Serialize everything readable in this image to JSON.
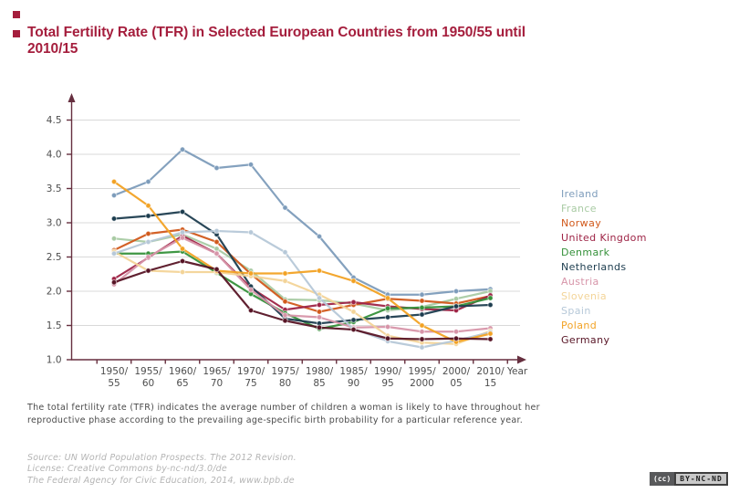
{
  "header": {
    "bullet_color": "#a51e3d",
    "title_color": "#a51e3d",
    "title": "Total Fertility Rate (TFR) in Selected European Countries from 1950/55 until 2010/15",
    "title_lines": [
      "Total Fertility Rate (TFR) in Selected European Countries from 1950/55 until",
      "2010/15"
    ]
  },
  "chart_data": {
    "type": "line",
    "title": "Total Fertility Rate (TFR) in Selected European Countries from 1950/55 until 2010/15",
    "xlabel": "Year",
    "ylabel": "",
    "ylim": [
      1.0,
      4.75
    ],
    "yticks": [
      1.0,
      1.5,
      2.0,
      2.5,
      3.0,
      3.5,
      4.0,
      4.5
    ],
    "ytick_labels": [
      "1.0",
      "1.5",
      "2.0",
      "2.5",
      "3.0",
      "3.5",
      "4.0",
      "4.5"
    ],
    "grid": true,
    "legend_position": "right",
    "axis_color": "#662f3f",
    "grid_color": "#d9d9d9",
    "tick_text_color": "#4d4d4d",
    "categories": [
      "1950/55",
      "1955/60",
      "1960/65",
      "1965/70",
      "1970/75",
      "1975/80",
      "1980/85",
      "1985/90",
      "1990/95",
      "1995/2000",
      "2000/05",
      "2010/15"
    ],
    "series": [
      {
        "name": "Ireland",
        "color": "#7d9cbb",
        "values": [
          3.4,
          3.6,
          4.07,
          3.8,
          3.85,
          3.22,
          2.8,
          2.2,
          1.95,
          1.95,
          2.0,
          2.03
        ]
      },
      {
        "name": "France",
        "color": "#a9cba4",
        "values": [
          2.77,
          2.72,
          2.83,
          2.62,
          2.3,
          1.88,
          1.87,
          1.82,
          1.72,
          1.77,
          1.89,
          2.0
        ]
      },
      {
        "name": "Norway",
        "color": "#d1591b",
        "values": [
          2.6,
          2.84,
          2.9,
          2.72,
          2.25,
          1.85,
          1.7,
          1.8,
          1.89,
          1.86,
          1.82,
          1.93
        ]
      },
      {
        "name": "United Kingdom",
        "color": "#9e2446",
        "values": [
          2.18,
          2.49,
          2.81,
          2.55,
          2.05,
          1.73,
          1.8,
          1.84,
          1.78,
          1.74,
          1.72,
          1.94
        ]
      },
      {
        "name": "Denmark",
        "color": "#35913a",
        "values": [
          2.55,
          2.55,
          2.58,
          2.27,
          1.96,
          1.68,
          1.45,
          1.55,
          1.75,
          1.76,
          1.78,
          1.9
        ]
      },
      {
        "name": "Netherlands",
        "color": "#1d3d4f",
        "values": [
          3.06,
          3.1,
          3.16,
          2.83,
          2.07,
          1.6,
          1.53,
          1.58,
          1.62,
          1.66,
          1.78,
          1.8
        ]
      },
      {
        "name": "Austria",
        "color": "#d795a9",
        "values": [
          2.1,
          2.5,
          2.78,
          2.55,
          2.02,
          1.65,
          1.62,
          1.47,
          1.48,
          1.41,
          1.41,
          1.46
        ]
      },
      {
        "name": "Slovenia",
        "color": "#f3d498",
        "values": [
          2.58,
          2.3,
          2.28,
          2.28,
          2.22,
          2.15,
          1.95,
          1.7,
          1.35,
          1.25,
          1.23,
          1.42
        ]
      },
      {
        "name": "Spain",
        "color": "#b6c8d8",
        "values": [
          2.55,
          2.72,
          2.86,
          2.88,
          2.86,
          2.57,
          1.9,
          1.45,
          1.27,
          1.18,
          1.28,
          1.4
        ]
      },
      {
        "name": "Poland",
        "color": "#f2a224",
        "values": [
          3.6,
          3.25,
          2.62,
          2.3,
          2.26,
          2.26,
          2.3,
          2.15,
          1.9,
          1.5,
          1.26,
          1.38
        ]
      },
      {
        "name": "Germany",
        "color": "#571425",
        "values": [
          2.13,
          2.3,
          2.44,
          2.32,
          1.72,
          1.57,
          1.47,
          1.44,
          1.31,
          1.3,
          1.31,
          1.3
        ]
      }
    ]
  },
  "note": {
    "text": "The total fertility rate (TFR) indicates the average number of children a woman is likely to have throughout her reproductive phase according to the prevailing age-specific birth probability for a particular reference year."
  },
  "footer": {
    "lines": [
      "Source: UN World Population Prospects. The 2012 Revision.",
      "License: Creative Commons by-nc-nd/3.0/de",
      "The Federal Agency for Civic Education, 2014, www.bpb.de"
    ]
  },
  "badge": {
    "cc": "(cc)",
    "label": "BY-NC-ND"
  }
}
